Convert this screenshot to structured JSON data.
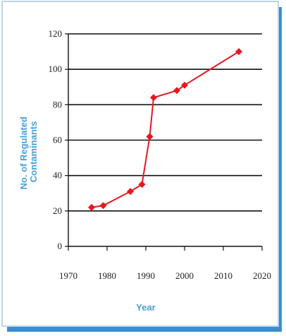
{
  "chart_data": {
    "type": "line",
    "title": "",
    "xlabel": "Year",
    "ylabel_lines": [
      "No. of Regulated",
      "Contaminants"
    ],
    "xlim": [
      1970,
      2020
    ],
    "ylim": [
      0,
      120
    ],
    "xticks": [
      1970,
      1980,
      1990,
      2000,
      2010,
      2020
    ],
    "yticks": [
      0,
      20,
      40,
      60,
      80,
      100,
      120
    ],
    "grid": "horizontal",
    "x": [
      1976,
      1979,
      1986,
      1989,
      1991,
      1992,
      1998,
      2000,
      2014
    ],
    "y": [
      22,
      23,
      31,
      35,
      62,
      84,
      88,
      91,
      110
    ],
    "colors": {
      "series": "#e8171f",
      "axis_title": "#4a9fd4",
      "border": "#bcd6ea",
      "border_shadow": "#3a8fd0",
      "grid": "#111111"
    }
  }
}
